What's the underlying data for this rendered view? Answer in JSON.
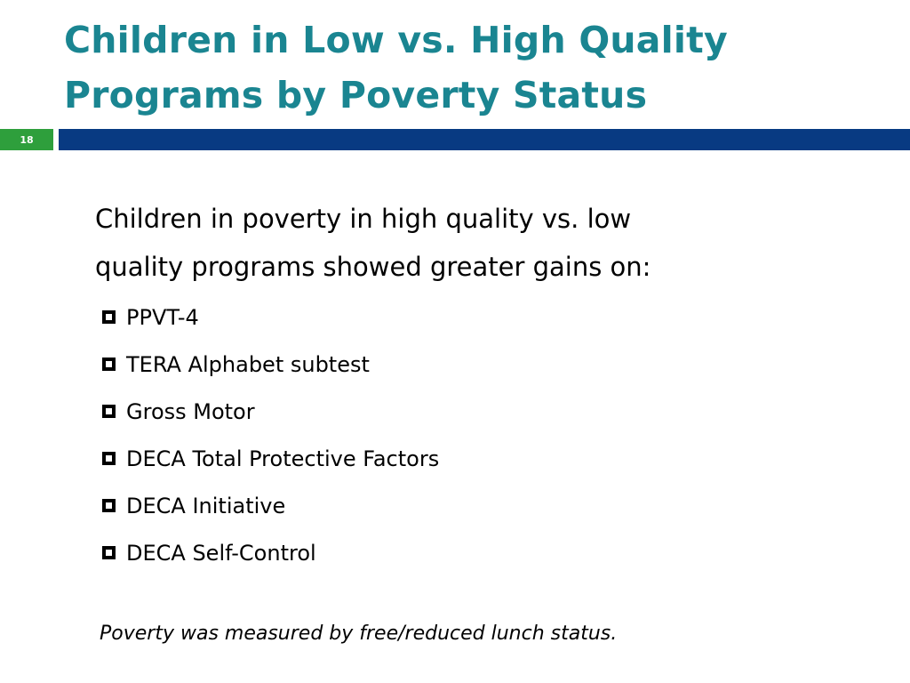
{
  "slide": {
    "title": "Children in Low vs. High Quality Programs by Poverty Status",
    "number": "18",
    "intro": "Children in poverty in high quality vs. low\nquality  programs showed greater gains on:",
    "bullets": [
      "PPVT-4",
      "TERA Alphabet subtest",
      "Gross Motor",
      "DECA Total Protective Factors",
      "DECA Initiative",
      "DECA Self-Control"
    ],
    "footnote": "Poverty was measured by free/reduced lunch status.",
    "bullet_icon": "hollow-square-icon"
  },
  "colors": {
    "title": "#1a8591",
    "number_box": "#2e9f3c",
    "title_bar": "#083a82",
    "text": "#000000"
  }
}
